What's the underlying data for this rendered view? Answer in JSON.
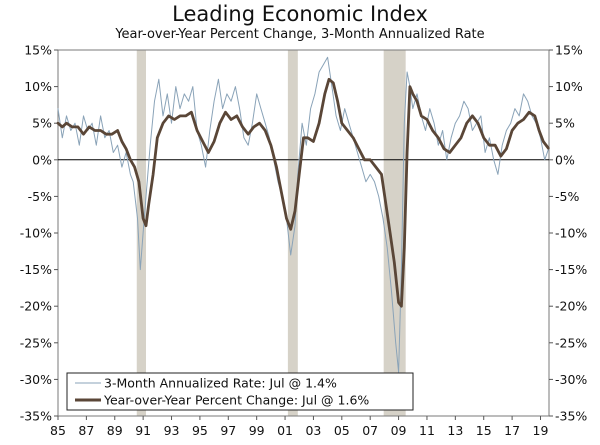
{
  "chart_data": {
    "type": "line",
    "title": "Leading Economic Index",
    "subtitle": "Year-over-Year Percent Change, 3-Month Annualized Rate",
    "xlim": [
      1985,
      2019.6
    ],
    "ylim": [
      -35,
      15
    ],
    "y_ticks": [
      15,
      10,
      5,
      0,
      -5,
      -10,
      -15,
      -20,
      -25,
      -30,
      -35
    ],
    "y_tick_labels": [
      "15%",
      "10%",
      "5%",
      "0%",
      "-5%",
      "-10%",
      "-15%",
      "-20%",
      "-25%",
      "-30%",
      "-35%"
    ],
    "x_ticks": [
      1985,
      1987,
      1989,
      1991,
      1993,
      1995,
      1997,
      1999,
      2001,
      2003,
      2005,
      2007,
      2009,
      2011,
      2013,
      2015,
      2017,
      2019
    ],
    "x_tick_labels": [
      "85",
      "87",
      "89",
      "91",
      "93",
      "95",
      "97",
      "99",
      "01",
      "03",
      "05",
      "07",
      "09",
      "11",
      "13",
      "15",
      "17",
      "19"
    ],
    "recessions": [
      [
        1990.55,
        1991.2
      ],
      [
        2001.2,
        2001.9
      ],
      [
        2007.95,
        2009.5
      ]
    ],
    "legend_position": "bottom-left",
    "series": [
      {
        "name": "3-Month Annualized Rate: Jul @ 1.4%",
        "color": "#8aa3b8",
        "style": "thin",
        "x": [
          1985.0,
          1985.3,
          1985.6,
          1985.9,
          1986.2,
          1986.5,
          1986.8,
          1987.1,
          1987.4,
          1987.7,
          1988.0,
          1988.3,
          1988.6,
          1988.9,
          1989.2,
          1989.5,
          1989.8,
          1990.1,
          1990.3,
          1990.6,
          1990.8,
          1991.0,
          1991.2,
          1991.5,
          1991.8,
          1992.1,
          1992.4,
          1992.7,
          1993.0,
          1993.3,
          1993.6,
          1993.9,
          1994.2,
          1994.5,
          1994.8,
          1995.1,
          1995.4,
          1995.7,
          1996.0,
          1996.3,
          1996.6,
          1996.9,
          1997.2,
          1997.5,
          1997.8,
          1998.1,
          1998.4,
          1998.7,
          1999.0,
          1999.3,
          1999.6,
          1999.9,
          2000.2,
          2000.5,
          2000.8,
          2001.1,
          2001.4,
          2001.7,
          2001.9,
          2002.2,
          2002.5,
          2002.8,
          2003.1,
          2003.4,
          2003.7,
          2004.0,
          2004.3,
          2004.6,
          2004.9,
          2005.2,
          2005.5,
          2005.8,
          2006.1,
          2006.4,
          2006.7,
          2007.0,
          2007.3,
          2007.6,
          2007.9,
          2008.2,
          2008.5,
          2008.8,
          2009.0,
          2009.2,
          2009.4,
          2009.6,
          2009.8,
          2010.0,
          2010.3,
          2010.6,
          2010.9,
          2011.2,
          2011.5,
          2011.8,
          2012.1,
          2012.4,
          2012.7,
          2013.0,
          2013.3,
          2013.6,
          2013.9,
          2014.2,
          2014.5,
          2014.8,
          2015.1,
          2015.4,
          2015.7,
          2016.0,
          2016.3,
          2016.6,
          2016.9,
          2017.2,
          2017.5,
          2017.8,
          2018.1,
          2018.4,
          2018.7,
          2019.0,
          2019.3,
          2019.55
        ],
        "values": [
          7,
          3,
          6,
          4,
          5,
          2,
          6,
          4,
          5,
          2,
          6,
          3,
          4,
          1,
          2,
          -1,
          1,
          -2,
          -3,
          -8,
          -15,
          -10,
          -5,
          2,
          8,
          11,
          6,
          9,
          5,
          10,
          7,
          9,
          8,
          10,
          4,
          2,
          -1,
          4,
          8,
          11,
          7,
          9,
          8,
          10,
          7,
          3,
          2,
          5,
          9,
          7,
          5,
          3,
          0,
          -3,
          -5,
          -8,
          -13,
          -9,
          -2,
          5,
          2,
          7,
          9,
          12,
          13,
          14,
          10,
          6,
          4,
          7,
          5,
          3,
          1,
          -1,
          -3,
          -2,
          -3,
          -5,
          -8,
          -12,
          -18,
          -25,
          -29,
          -15,
          5,
          12,
          10,
          7,
          9,
          6,
          4,
          7,
          5,
          2,
          4,
          0,
          3,
          5,
          6,
          8,
          7,
          4,
          5,
          6,
          1,
          3,
          0,
          -2,
          2,
          4,
          5,
          7,
          6,
          9,
          8,
          6,
          5,
          3,
          0,
          1.4
        ]
      },
      {
        "name": "Year-over-Year Percent Change: Jul @ 1.6%",
        "color": "#5a4637",
        "style": "thick",
        "x": [
          1985.0,
          1985.3,
          1985.6,
          1986.0,
          1986.4,
          1986.8,
          1987.2,
          1987.6,
          1988.0,
          1988.4,
          1988.8,
          1989.2,
          1989.5,
          1989.8,
          1990.1,
          1990.4,
          1990.7,
          1991.0,
          1991.2,
          1991.4,
          1991.7,
          1992.0,
          1992.4,
          1992.8,
          1993.2,
          1993.6,
          1994.0,
          1994.4,
          1994.8,
          1995.2,
          1995.6,
          1996.0,
          1996.4,
          1996.8,
          1997.2,
          1997.6,
          1998.0,
          1998.4,
          1998.8,
          1999.2,
          1999.6,
          2000.0,
          2000.4,
          2000.8,
          2001.1,
          2001.4,
          2001.7,
          2002.0,
          2002.3,
          2002.6,
          2003.0,
          2003.4,
          2003.8,
          2004.1,
          2004.4,
          2004.7,
          2005.0,
          2005.4,
          2005.8,
          2006.2,
          2006.6,
          2007.0,
          2007.4,
          2007.8,
          2008.1,
          2008.4,
          2008.7,
          2009.0,
          2009.2,
          2009.4,
          2009.6,
          2009.8,
          2010.0,
          2010.3,
          2010.6,
          2011.0,
          2011.4,
          2011.8,
          2012.2,
          2012.6,
          2013.0,
          2013.4,
          2013.8,
          2014.2,
          2014.6,
          2015.0,
          2015.4,
          2015.8,
          2016.2,
          2016.6,
          2017.0,
          2017.4,
          2017.8,
          2018.2,
          2018.6,
          2018.9,
          2019.2,
          2019.55
        ],
        "values": [
          5,
          4.5,
          5,
          4.5,
          4.5,
          3.5,
          4.5,
          4,
          4,
          3.5,
          3.5,
          4,
          2.5,
          1.5,
          0,
          -1,
          -3,
          -8,
          -9,
          -6,
          -2,
          3,
          5,
          6,
          5.5,
          6,
          6,
          6.5,
          4,
          2.5,
          1,
          2.5,
          5,
          6.5,
          5.5,
          6,
          4.5,
          3.5,
          4.5,
          5,
          4,
          2,
          -1,
          -5,
          -8,
          -9.5,
          -7,
          -2,
          3,
          3,
          2.5,
          5,
          9,
          11,
          10.5,
          8,
          5,
          4,
          3,
          1.5,
          0,
          0,
          -1,
          -2,
          -6,
          -10,
          -14,
          -19.5,
          -20,
          -12,
          1,
          10,
          9,
          8,
          6,
          5.5,
          4,
          3,
          1.5,
          1,
          2,
          3,
          5,
          6,
          5,
          3,
          2,
          2,
          0.5,
          1.5,
          4,
          5,
          5.5,
          6.5,
          6,
          4,
          2.5,
          1.6
        ]
      }
    ]
  }
}
